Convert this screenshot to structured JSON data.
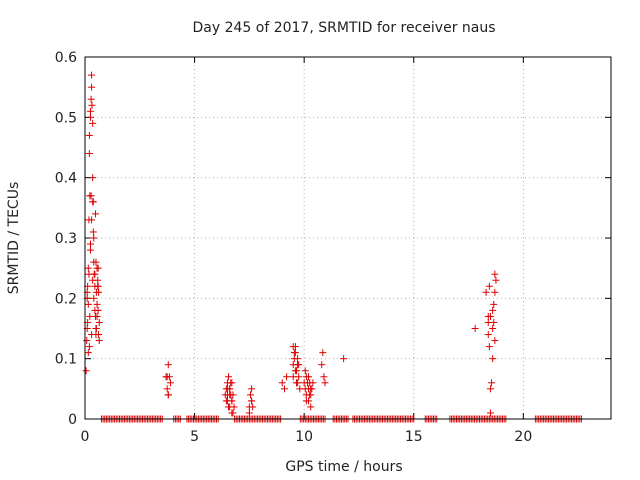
{
  "chart_data": {
    "type": "scatter",
    "title": "Day 245 of 2017, SRMTID for receiver naus",
    "xlabel": "GPS time / hours",
    "ylabel": "SRMTID / TECUs",
    "xlim": [
      0,
      24
    ],
    "ylim": [
      0,
      0.6
    ],
    "x_ticks": [
      0,
      5,
      10,
      15,
      20
    ],
    "y_ticks": [
      0,
      0.1,
      0.2,
      0.3,
      0.4,
      0.5,
      0.6
    ],
    "x_tick_labels": [
      "0",
      "5",
      "10",
      "15",
      "20"
    ],
    "y_tick_labels": [
      "0",
      "0.1",
      "0.2",
      "0.3",
      "0.4",
      "0.5",
      "0.6"
    ],
    "grid": true,
    "marker": "+",
    "color": "#e00000",
    "series": [
      {
        "name": "SRMTID",
        "x": [
          0.05,
          0.08,
          0.1,
          0.1,
          0.12,
          0.15,
          0.15,
          0.18,
          0.2,
          0.2,
          0.22,
          0.25,
          0.25,
          0.25,
          0.28,
          0.3,
          0.3,
          0.3,
          0.32,
          0.35,
          0.35,
          0.35,
          0.38,
          0.4,
          0.4,
          0.42,
          0.45,
          0.45,
          0.48,
          0.5,
          0.5,
          0.5,
          0.52,
          0.55,
          0.55,
          0.58,
          0.6,
          0.6,
          0.6,
          0.62,
          0.65,
          0.65,
          0.1,
          0.12,
          0.2,
          0.28,
          0.35,
          0.45,
          0.55,
          0.62,
          0.15,
          0.22,
          0.3,
          0.38,
          0.48,
          0.58,
          0.18,
          0.25,
          0.4,
          0.52,
          3.7,
          3.75,
          3.8,
          3.8,
          3.85,
          3.9,
          3.75,
          3.8,
          6.4,
          6.45,
          6.5,
          6.5,
          6.55,
          6.6,
          6.6,
          6.65,
          6.7,
          6.7,
          6.75,
          6.8,
          6.5,
          6.6,
          6.7,
          6.55,
          6.65,
          6.45,
          6.75,
          6.6,
          6.5,
          6.7,
          7.5,
          7.55,
          7.6,
          7.6,
          7.65,
          7.5,
          7.6,
          9.0,
          9.1,
          9.2,
          9.5,
          9.5,
          9.55,
          9.6,
          9.6,
          9.65,
          9.7,
          9.7,
          9.75,
          9.8,
          9.55,
          9.65,
          9.7,
          9.6,
          9.5,
          9.75,
          10.0,
          10.05,
          10.1,
          10.1,
          10.15,
          10.2,
          10.2,
          10.25,
          10.3,
          10.3,
          10.35,
          10.4,
          10.1,
          10.2,
          10.3,
          10.05,
          10.25,
          10.8,
          10.85,
          10.9,
          10.95,
          11.8,
          17.8,
          18.3,
          18.4,
          18.4,
          18.45,
          18.5,
          18.5,
          18.55,
          18.6,
          18.6,
          18.65,
          18.7,
          18.7,
          18.75,
          18.5,
          18.6,
          18.7,
          18.4,
          18.45,
          18.65
        ],
        "y": [
          0.08,
          0.13,
          0.15,
          0.21,
          0.16,
          0.25,
          0.19,
          0.33,
          0.44,
          0.47,
          0.37,
          0.5,
          0.51,
          0.29,
          0.53,
          0.55,
          0.57,
          0.14,
          0.52,
          0.49,
          0.4,
          0.36,
          0.31,
          0.3,
          0.26,
          0.24,
          0.22,
          0.18,
          0.17,
          0.26,
          0.15,
          0.14,
          0.21,
          0.19,
          0.17,
          0.23,
          0.25,
          0.22,
          0.18,
          0.14,
          0.16,
          0.13,
          0.2,
          0.22,
          0.12,
          0.37,
          0.23,
          0.24,
          0.25,
          0.21,
          0.11,
          0.17,
          0.33,
          0.36,
          0.34,
          0.22,
          0.24,
          0.28,
          0.2,
          0.15,
          0.07,
          0.05,
          0.09,
          0.04,
          0.07,
          0.06,
          0.07,
          0.04,
          0.04,
          0.05,
          0.06,
          0.03,
          0.07,
          0.02,
          0.05,
          0.04,
          0.03,
          0.06,
          0.01,
          0.02,
          0.05,
          0.04,
          0.03,
          0.02,
          0.06,
          0.03,
          0.04,
          0.05,
          0.04,
          0.01,
          0.02,
          0.04,
          0.03,
          0.05,
          0.02,
          0.01,
          0.03,
          0.06,
          0.05,
          0.07,
          0.09,
          0.12,
          0.1,
          0.08,
          0.11,
          0.06,
          0.1,
          0.09,
          0.07,
          0.05,
          0.11,
          0.08,
          0.06,
          0.12,
          0.07,
          0.09,
          0.06,
          0.05,
          0.07,
          0.04,
          0.06,
          0.03,
          0.05,
          0.06,
          0.04,
          0.02,
          0.05,
          0.06,
          0.03,
          0.07,
          0.05,
          0.08,
          0.04,
          0.09,
          0.11,
          0.07,
          0.06,
          0.1,
          0.15,
          0.21,
          0.17,
          0.14,
          0.12,
          0.05,
          0.01,
          0.06,
          0.15,
          0.18,
          0.16,
          0.21,
          0.24,
          0.23,
          0.17,
          0.1,
          0.13,
          0.16,
          0.22,
          0.19
        ]
      },
      {
        "name": "zero baseline",
        "x_range": [
          0.75,
          22.7
        ],
        "x_step": 0.075,
        "y": 0,
        "gaps": [
          [
            3.6,
            4.0
          ],
          [
            4.4,
            4.6
          ],
          [
            6.1,
            6.8
          ],
          [
            9.0,
            9.8
          ],
          [
            11.0,
            11.3
          ],
          [
            12.0,
            12.2
          ],
          [
            15.0,
            15.5
          ],
          [
            16.1,
            16.6
          ],
          [
            19.2,
            20.5
          ]
        ]
      }
    ]
  }
}
